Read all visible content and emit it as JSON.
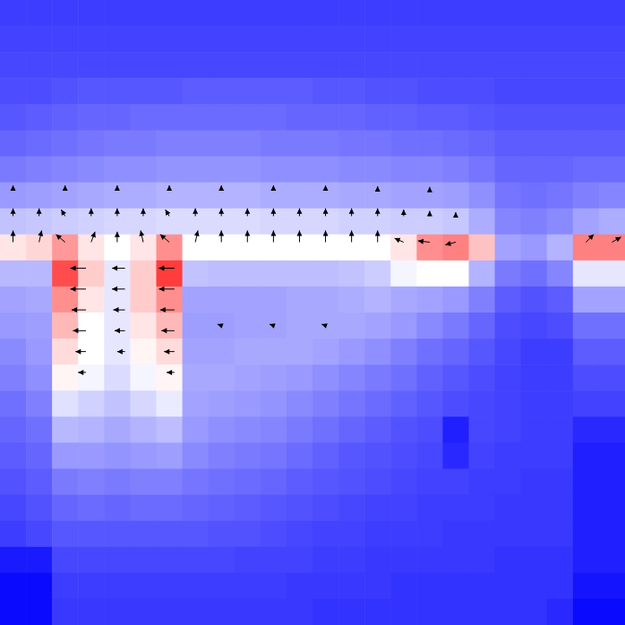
{
  "chart_data": {
    "type": "heatmap",
    "xlim": [
      0,
      24
    ],
    "ylim": [
      0,
      24
    ],
    "tick_labels": false,
    "color_range": [
      0,
      1
    ],
    "cells": [
      [
        0.12,
        0.12,
        0.12,
        0.12,
        0.12,
        0.12,
        0.12,
        0.12,
        0.12,
        0.12,
        0.12,
        0.12,
        0.12,
        0.12,
        0.12,
        0.12,
        0.12,
        0.12,
        0.12,
        0.12,
        0.12,
        0.12,
        0.12,
        0.12
      ],
      [
        0.13,
        0.13,
        0.13,
        0.13,
        0.13,
        0.13,
        0.13,
        0.13,
        0.13,
        0.13,
        0.13,
        0.13,
        0.13,
        0.13,
        0.13,
        0.13,
        0.13,
        0.13,
        0.13,
        0.13,
        0.13,
        0.13,
        0.13,
        0.13
      ],
      [
        0.14,
        0.14,
        0.14,
        0.14,
        0.14,
        0.14,
        0.14,
        0.14,
        0.14,
        0.14,
        0.14,
        0.14,
        0.14,
        0.14,
        0.14,
        0.14,
        0.14,
        0.14,
        0.14,
        0.14,
        0.14,
        0.14,
        0.14,
        0.14
      ],
      [
        0.15,
        0.15,
        0.16,
        0.17,
        0.17,
        0.17,
        0.17,
        0.18,
        0.18,
        0.18,
        0.18,
        0.18,
        0.17,
        0.17,
        0.16,
        0.16,
        0.15,
        0.15,
        0.15,
        0.14,
        0.14,
        0.14,
        0.14,
        0.14
      ],
      [
        0.17,
        0.18,
        0.19,
        0.2,
        0.2,
        0.21,
        0.21,
        0.21,
        0.21,
        0.21,
        0.21,
        0.2,
        0.2,
        0.2,
        0.19,
        0.19,
        0.18,
        0.18,
        0.17,
        0.16,
        0.16,
        0.16,
        0.16,
        0.16
      ],
      [
        0.2,
        0.21,
        0.22,
        0.23,
        0.24,
        0.24,
        0.25,
        0.25,
        0.25,
        0.25,
        0.24,
        0.24,
        0.24,
        0.23,
        0.23,
        0.22,
        0.22,
        0.21,
        0.2,
        0.18,
        0.18,
        0.18,
        0.18,
        0.18
      ],
      [
        0.24,
        0.25,
        0.26,
        0.27,
        0.28,
        0.28,
        0.29,
        0.29,
        0.29,
        0.29,
        0.28,
        0.28,
        0.28,
        0.27,
        0.27,
        0.26,
        0.26,
        0.25,
        0.23,
        0.2,
        0.2,
        0.2,
        0.21,
        0.21
      ],
      [
        0.3,
        0.31,
        0.32,
        0.33,
        0.34,
        0.34,
        0.35,
        0.35,
        0.35,
        0.35,
        0.34,
        0.34,
        0.34,
        0.33,
        0.33,
        0.32,
        0.32,
        0.31,
        0.28,
        0.23,
        0.22,
        0.23,
        0.25,
        0.26
      ],
      [
        0.38,
        0.39,
        0.4,
        0.41,
        0.42,
        0.42,
        0.43,
        0.43,
        0.43,
        0.43,
        0.42,
        0.42,
        0.42,
        0.41,
        0.41,
        0.4,
        0.4,
        0.39,
        0.34,
        0.26,
        0.25,
        0.27,
        0.32,
        0.34
      ],
      [
        0.55,
        0.58,
        0.7,
        0.55,
        0.5,
        0.55,
        0.72,
        0.5,
        0.5,
        0.5,
        0.5,
        0.5,
        0.5,
        0.5,
        0.5,
        0.55,
        0.72,
        0.75,
        0.62,
        0.32,
        0.3,
        0.35,
        0.75,
        0.75
      ],
      [
        0.36,
        0.36,
        0.85,
        0.6,
        0.45,
        0.6,
        0.88,
        0.38,
        0.37,
        0.37,
        0.37,
        0.37,
        0.37,
        0.38,
        0.4,
        0.48,
        0.5,
        0.5,
        0.35,
        0.24,
        0.22,
        0.26,
        0.45,
        0.45
      ],
      [
        0.32,
        0.33,
        0.72,
        0.55,
        0.45,
        0.6,
        0.72,
        0.32,
        0.32,
        0.32,
        0.32,
        0.33,
        0.33,
        0.34,
        0.35,
        0.33,
        0.32,
        0.3,
        0.25,
        0.18,
        0.16,
        0.18,
        0.32,
        0.32
      ],
      [
        0.3,
        0.31,
        0.64,
        0.5,
        0.45,
        0.55,
        0.64,
        0.31,
        0.31,
        0.32,
        0.32,
        0.33,
        0.33,
        0.33,
        0.32,
        0.3,
        0.27,
        0.24,
        0.2,
        0.15,
        0.14,
        0.15,
        0.22,
        0.22
      ],
      [
        0.27,
        0.3,
        0.57,
        0.5,
        0.45,
        0.52,
        0.57,
        0.32,
        0.32,
        0.33,
        0.33,
        0.33,
        0.32,
        0.3,
        0.28,
        0.25,
        0.22,
        0.2,
        0.17,
        0.14,
        0.12,
        0.12,
        0.18,
        0.18
      ],
      [
        0.25,
        0.28,
        0.52,
        0.48,
        0.43,
        0.48,
        0.52,
        0.33,
        0.33,
        0.32,
        0.31,
        0.3,
        0.28,
        0.26,
        0.24,
        0.22,
        0.19,
        0.17,
        0.15,
        0.13,
        0.12,
        0.12,
        0.15,
        0.15
      ],
      [
        0.22,
        0.25,
        0.44,
        0.41,
        0.38,
        0.42,
        0.46,
        0.32,
        0.31,
        0.3,
        0.29,
        0.27,
        0.25,
        0.23,
        0.21,
        0.19,
        0.17,
        0.15,
        0.14,
        0.13,
        0.12,
        0.12,
        0.13,
        0.13
      ],
      [
        0.2,
        0.22,
        0.36,
        0.35,
        0.33,
        0.35,
        0.37,
        0.3,
        0.28,
        0.27,
        0.26,
        0.24,
        0.22,
        0.2,
        0.18,
        0.16,
        0.15,
        0.06,
        0.14,
        0.13,
        0.12,
        0.12,
        0.08,
        0.08
      ],
      [
        0.18,
        0.2,
        0.3,
        0.3,
        0.29,
        0.3,
        0.31,
        0.27,
        0.25,
        0.24,
        0.23,
        0.21,
        0.19,
        0.17,
        0.16,
        0.15,
        0.14,
        0.08,
        0.13,
        0.12,
        0.12,
        0.12,
        0.06,
        0.06
      ],
      [
        0.16,
        0.18,
        0.24,
        0.25,
        0.24,
        0.25,
        0.25,
        0.23,
        0.22,
        0.21,
        0.2,
        0.18,
        0.17,
        0.16,
        0.15,
        0.14,
        0.13,
        0.13,
        0.12,
        0.12,
        0.11,
        0.11,
        0.06,
        0.06
      ],
      [
        0.14,
        0.16,
        0.2,
        0.21,
        0.2,
        0.21,
        0.21,
        0.2,
        0.19,
        0.18,
        0.17,
        0.16,
        0.15,
        0.14,
        0.13,
        0.13,
        0.12,
        0.12,
        0.12,
        0.11,
        0.11,
        0.11,
        0.06,
        0.06
      ],
      [
        0.12,
        0.14,
        0.17,
        0.17,
        0.17,
        0.17,
        0.17,
        0.17,
        0.16,
        0.16,
        0.15,
        0.14,
        0.13,
        0.13,
        0.12,
        0.12,
        0.12,
        0.11,
        0.11,
        0.11,
        0.11,
        0.11,
        0.06,
        0.06
      ],
      [
        0.05,
        0.05,
        0.14,
        0.14,
        0.14,
        0.14,
        0.14,
        0.14,
        0.14,
        0.13,
        0.13,
        0.13,
        0.12,
        0.12,
        0.11,
        0.11,
        0.11,
        0.11,
        0.11,
        0.1,
        0.1,
        0.1,
        0.06,
        0.06
      ],
      [
        0.02,
        0.02,
        0.12,
        0.12,
        0.12,
        0.12,
        0.12,
        0.12,
        0.12,
        0.12,
        0.12,
        0.11,
        0.11,
        0.11,
        0.11,
        0.1,
        0.1,
        0.1,
        0.1,
        0.1,
        0.1,
        0.1,
        0.04,
        0.04
      ],
      [
        0.02,
        0.02,
        0.11,
        0.11,
        0.11,
        0.11,
        0.11,
        0.11,
        0.11,
        0.11,
        0.11,
        0.11,
        0.1,
        0.1,
        0.1,
        0.1,
        0.1,
        0.1,
        0.1,
        0.1,
        0.1,
        0.08,
        0.02,
        0.02
      ]
    ],
    "vectors": [
      {
        "x": 0.5,
        "y": 9.3,
        "u": 0,
        "v": -0.45
      },
      {
        "x": 1.5,
        "y": 9.3,
        "u": 0.1,
        "v": -0.45
      },
      {
        "x": 2.5,
        "y": 9.3,
        "u": -0.35,
        "v": -0.3
      },
      {
        "x": 3.5,
        "y": 9.3,
        "u": 0.15,
        "v": -0.4
      },
      {
        "x": 4.5,
        "y": 9.3,
        "u": 0,
        "v": -0.4
      },
      {
        "x": 5.5,
        "y": 9.3,
        "u": -0.1,
        "v": -0.45
      },
      {
        "x": 6.5,
        "y": 9.3,
        "u": -0.35,
        "v": -0.3
      },
      {
        "x": 7.5,
        "y": 9.3,
        "u": 0.1,
        "v": -0.45
      },
      {
        "x": 8.5,
        "y": 9.3,
        "u": 0,
        "v": -0.45
      },
      {
        "x": 9.5,
        "y": 9.3,
        "u": 0,
        "v": -0.45
      },
      {
        "x": 10.5,
        "y": 9.3,
        "u": 0,
        "v": -0.45
      },
      {
        "x": 11.5,
        "y": 9.3,
        "u": 0,
        "v": -0.45
      },
      {
        "x": 12.5,
        "y": 9.3,
        "u": 0,
        "v": -0.45
      },
      {
        "x": 13.5,
        "y": 9.3,
        "u": 0,
        "v": -0.45
      },
      {
        "x": 14.5,
        "y": 9.3,
        "u": 0,
        "v": -0.45
      },
      {
        "x": 15.5,
        "y": 9.3,
        "u": -0.35,
        "v": -0.15
      },
      {
        "x": 16.5,
        "y": 9.3,
        "u": -0.45,
        "v": -0.05
      },
      {
        "x": 17.5,
        "y": 9.3,
        "u": -0.4,
        "v": 0.1
      },
      {
        "x": 22.5,
        "y": 9.3,
        "u": 0.3,
        "v": -0.3
      },
      {
        "x": 23.5,
        "y": 9.3,
        "u": 0.35,
        "v": -0.2
      },
      {
        "x": 0.5,
        "y": 8.3,
        "u": 0,
        "v": -0.3
      },
      {
        "x": 1.5,
        "y": 8.3,
        "u": 0,
        "v": -0.3
      },
      {
        "x": 2.5,
        "y": 8.3,
        "u": -0.15,
        "v": -0.25
      },
      {
        "x": 3.5,
        "y": 8.3,
        "u": 0,
        "v": -0.3
      },
      {
        "x": 4.5,
        "y": 8.3,
        "u": 0,
        "v": -0.3
      },
      {
        "x": 5.5,
        "y": 8.3,
        "u": 0,
        "v": -0.3
      },
      {
        "x": 6.5,
        "y": 8.3,
        "u": -0.15,
        "v": -0.25
      },
      {
        "x": 7.5,
        "y": 8.3,
        "u": 0,
        "v": -0.3
      },
      {
        "x": 8.5,
        "y": 8.3,
        "u": 0,
        "v": -0.3
      },
      {
        "x": 9.5,
        "y": 8.3,
        "u": 0,
        "v": -0.3
      },
      {
        "x": 10.5,
        "y": 8.3,
        "u": 0,
        "v": -0.3
      },
      {
        "x": 11.5,
        "y": 8.3,
        "u": 0,
        "v": -0.3
      },
      {
        "x": 12.5,
        "y": 8.3,
        "u": 0,
        "v": -0.3
      },
      {
        "x": 13.5,
        "y": 8.3,
        "u": 0,
        "v": -0.3
      },
      {
        "x": 14.5,
        "y": 8.3,
        "u": 0,
        "v": -0.3
      },
      {
        "x": 15.5,
        "y": 8.3,
        "u": 0,
        "v": -0.25
      },
      {
        "x": 16.5,
        "y": 8.3,
        "u": 0,
        "v": -0.2
      },
      {
        "x": 17.5,
        "y": 8.3,
        "u": 0,
        "v": -0.15
      },
      {
        "x": 0.5,
        "y": 7.3,
        "u": 0,
        "v": -0.18
      },
      {
        "x": 2.5,
        "y": 7.3,
        "u": 0,
        "v": -0.18
      },
      {
        "x": 4.5,
        "y": 7.3,
        "u": 0,
        "v": -0.18
      },
      {
        "x": 6.5,
        "y": 7.3,
        "u": 0,
        "v": -0.18
      },
      {
        "x": 8.5,
        "y": 7.3,
        "u": 0,
        "v": -0.18
      },
      {
        "x": 10.5,
        "y": 7.3,
        "u": 0,
        "v": -0.18
      },
      {
        "x": 12.5,
        "y": 7.3,
        "u": 0,
        "v": -0.18
      },
      {
        "x": 14.5,
        "y": 7.3,
        "u": 0,
        "v": -0.15
      },
      {
        "x": 16.5,
        "y": 7.3,
        "u": 0,
        "v": -0.12
      },
      {
        "x": 3.3,
        "y": 10.3,
        "u": -0.6,
        "v": 0
      },
      {
        "x": 3.3,
        "y": 11.1,
        "u": -0.6,
        "v": 0
      },
      {
        "x": 3.3,
        "y": 11.9,
        "u": -0.55,
        "v": 0
      },
      {
        "x": 3.3,
        "y": 12.7,
        "u": -0.5,
        "v": 0
      },
      {
        "x": 3.3,
        "y": 13.5,
        "u": -0.4,
        "v": 0
      },
      {
        "x": 3.3,
        "y": 14.3,
        "u": -0.3,
        "v": 0
      },
      {
        "x": 6.7,
        "y": 10.3,
        "u": -0.6,
        "v": 0
      },
      {
        "x": 6.7,
        "y": 11.1,
        "u": -0.6,
        "v": 0
      },
      {
        "x": 6.7,
        "y": 11.9,
        "u": -0.55,
        "v": 0
      },
      {
        "x": 6.7,
        "y": 12.7,
        "u": -0.5,
        "v": 0
      },
      {
        "x": 6.7,
        "y": 13.5,
        "u": -0.4,
        "v": 0
      },
      {
        "x": 6.7,
        "y": 14.3,
        "u": -0.3,
        "v": 0
      },
      {
        "x": 4.8,
        "y": 10.3,
        "u": -0.5,
        "v": 0
      },
      {
        "x": 4.8,
        "y": 11.1,
        "u": -0.5,
        "v": 0
      },
      {
        "x": 4.8,
        "y": 11.9,
        "u": -0.45,
        "v": 0
      },
      {
        "x": 4.8,
        "y": 12.7,
        "u": -0.4,
        "v": 0
      },
      {
        "x": 4.8,
        "y": 13.5,
        "u": -0.3,
        "v": 0
      },
      {
        "x": 8.5,
        "y": 12.5,
        "u": -0.15,
        "v": -0.05
      },
      {
        "x": 10.5,
        "y": 12.5,
        "u": -0.15,
        "v": -0.05
      },
      {
        "x": 12.5,
        "y": 12.5,
        "u": -0.15,
        "v": -0.05
      }
    ]
  }
}
